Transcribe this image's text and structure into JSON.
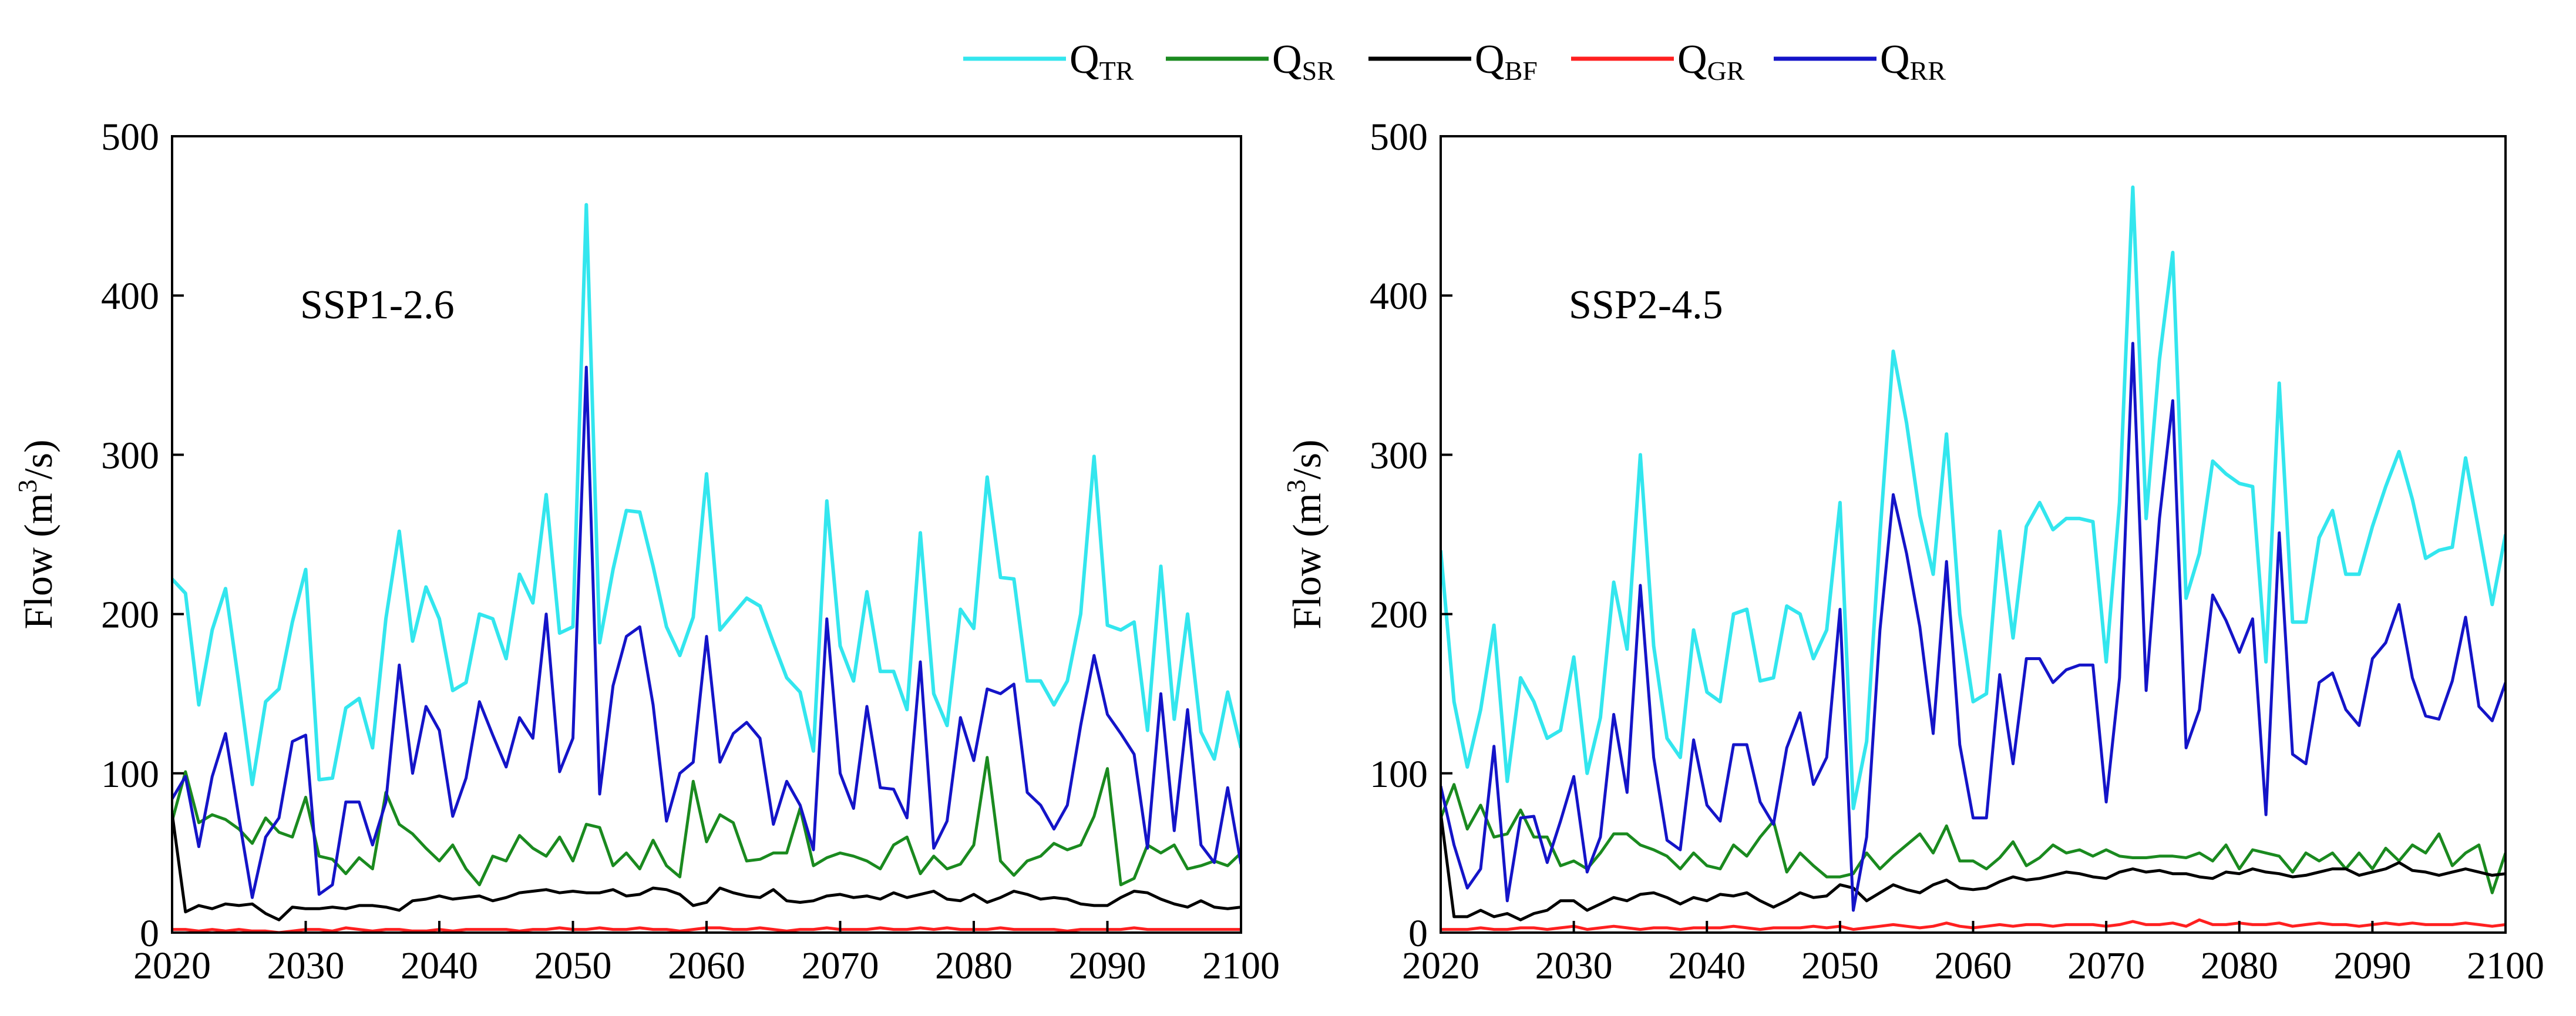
{
  "legend": [
    {
      "main": "Q",
      "sub": "TR",
      "color": "#33E6EE"
    },
    {
      "main": "Q",
      "sub": "SR",
      "color": "#1A8A1F"
    },
    {
      "main": "Q",
      "sub": "BF",
      "color": "#000000"
    },
    {
      "main": "Q",
      "sub": "GR",
      "color": "#FF2020"
    },
    {
      "main": "Q",
      "sub": "RR",
      "color": "#1414C8"
    }
  ],
  "chart_data": [
    {
      "type": "line",
      "annotation": "SSP1-2.6",
      "ylabel_main": "Flow (m",
      "ylabel_sup": "3",
      "ylabel_end": "/s)",
      "xlim": [
        2020,
        2100
      ],
      "ylim": [
        0,
        500
      ],
      "xticks": [
        2020,
        2030,
        2040,
        2050,
        2060,
        2070,
        2080,
        2090,
        2100
      ],
      "yticks": [
        0,
        100,
        200,
        300,
        400,
        500
      ],
      "grid": false,
      "x_start": 2020,
      "series": [
        {
          "name": "QTR",
          "color": "#33E6EE",
          "values": [
            222,
            213,
            143,
            190,
            216,
            156,
            93,
            145,
            153,
            195,
            228,
            96,
            97,
            141,
            147,
            116,
            197,
            252,
            183,
            217,
            197,
            152,
            157,
            200,
            197,
            172,
            225,
            207,
            275,
            188,
            192,
            457,
            182,
            228,
            265,
            264,
            230,
            192,
            174,
            198,
            288,
            190,
            200,
            210,
            205,
            182,
            160,
            151,
            114,
            271,
            180,
            158,
            214,
            164,
            164,
            140,
            251,
            150,
            130,
            203,
            191,
            286,
            223,
            222,
            158,
            158,
            143,
            158,
            200,
            299,
            193,
            190,
            195,
            127,
            230,
            134,
            200,
            126,
            109,
            151,
            116
          ]
        },
        {
          "name": "QSR",
          "color": "#1A8A1F",
          "values": [
            70,
            101,
            69,
            74,
            71,
            65,
            56,
            72,
            63,
            60,
            85,
            48,
            46,
            37,
            47,
            40,
            88,
            68,
            62,
            53,
            45,
            55,
            40,
            30,
            48,
            45,
            61,
            53,
            48,
            60,
            45,
            68,
            66,
            42,
            50,
            40,
            58,
            42,
            35,
            95,
            57,
            74,
            69,
            45,
            46,
            50,
            50,
            78,
            42,
            47,
            50,
            48,
            45,
            40,
            55,
            60,
            37,
            48,
            40,
            43,
            55,
            110,
            45,
            36,
            45,
            48,
            56,
            52,
            55,
            73,
            103,
            30,
            34,
            55,
            50,
            55,
            40,
            42,
            45,
            42,
            50
          ]
        },
        {
          "name": "QBF",
          "color": "#000000",
          "values": [
            75,
            13,
            17,
            15,
            18,
            17,
            18,
            12,
            8,
            16,
            15,
            15,
            16,
            15,
            17,
            17,
            16,
            14,
            20,
            21,
            23,
            21,
            22,
            23,
            20,
            22,
            25,
            26,
            27,
            25,
            26,
            25,
            25,
            27,
            23,
            24,
            28,
            27,
            24,
            17,
            19,
            28,
            25,
            23,
            22,
            27,
            20,
            19,
            20,
            23,
            24,
            22,
            23,
            21,
            25,
            22,
            24,
            26,
            21,
            20,
            24,
            19,
            22,
            26,
            24,
            21,
            22,
            21,
            18,
            17,
            17,
            22,
            26,
            25,
            21,
            18,
            16,
            20,
            16,
            15,
            16
          ]
        },
        {
          "name": "QGR",
          "color": "#FF2020",
          "values": [
            2,
            2,
            1,
            2,
            1,
            2,
            1,
            1,
            0,
            1,
            2,
            2,
            1,
            3,
            2,
            1,
            2,
            2,
            1,
            1,
            2,
            1,
            2,
            2,
            2,
            2,
            1,
            2,
            2,
            3,
            2,
            2,
            3,
            2,
            2,
            3,
            2,
            2,
            1,
            2,
            3,
            3,
            2,
            2,
            3,
            2,
            1,
            2,
            2,
            3,
            2,
            2,
            2,
            3,
            2,
            2,
            3,
            2,
            3,
            2,
            2,
            2,
            3,
            2,
            2,
            2,
            2,
            1,
            2,
            2,
            2,
            2,
            3,
            2,
            2,
            2,
            2,
            2,
            2,
            2,
            2
          ]
        },
        {
          "name": "QRR",
          "color": "#1414C8",
          "values": [
            84,
            98,
            54,
            98,
            125,
            72,
            22,
            60,
            72,
            120,
            124,
            24,
            30,
            82,
            82,
            55,
            82,
            168,
            100,
            142,
            127,
            73,
            97,
            145,
            124,
            104,
            135,
            122,
            200,
            101,
            122,
            355,
            87,
            155,
            186,
            192,
            143,
            70,
            100,
            107,
            186,
            107,
            125,
            132,
            122,
            68,
            95,
            80,
            52,
            197,
            100,
            78,
            142,
            91,
            90,
            72,
            170,
            53,
            70,
            135,
            108,
            153,
            150,
            156,
            88,
            80,
            65,
            80,
            130,
            174,
            137,
            125,
            112,
            53,
            150,
            64,
            140,
            55,
            44,
            91,
            43
          ]
        }
      ]
    },
    {
      "type": "line",
      "annotation": "SSP2-4.5",
      "ylabel_main": "Flow (m",
      "ylabel_sup": "3",
      "ylabel_end": "/s)",
      "xlim": [
        2020,
        2100
      ],
      "ylim": [
        0,
        500
      ],
      "xticks": [
        2020,
        2030,
        2040,
        2050,
        2060,
        2070,
        2080,
        2090,
        2100
      ],
      "yticks": [
        0,
        100,
        200,
        300,
        400,
        500
      ],
      "grid": false,
      "x_start": 2020,
      "series": [
        {
          "name": "QTR",
          "color": "#33E6EE",
          "values": [
            240,
            145,
            104,
            140,
            193,
            95,
            160,
            145,
            122,
            127,
            173,
            100,
            135,
            220,
            178,
            300,
            180,
            122,
            110,
            190,
            151,
            145,
            200,
            203,
            158,
            160,
            205,
            200,
            172,
            190,
            270,
            78,
            120,
            250,
            365,
            320,
            262,
            225,
            313,
            200,
            145,
            150,
            252,
            185,
            255,
            270,
            253,
            260,
            260,
            258,
            170,
            270,
            468,
            260,
            360,
            427,
            210,
            238,
            296,
            288,
            282,
            280,
            170,
            345,
            195,
            195,
            248,
            265,
            225,
            225,
            255,
            280,
            302,
            272,
            235,
            240,
            242,
            298,
            252,
            206,
            250
          ]
        },
        {
          "name": "QSR",
          "color": "#1A8A1F",
          "values": [
            72,
            93,
            65,
            80,
            60,
            62,
            77,
            60,
            60,
            42,
            45,
            40,
            50,
            62,
            62,
            55,
            52,
            48,
            40,
            50,
            42,
            40,
            55,
            48,
            60,
            70,
            38,
            50,
            42,
            35,
            35,
            37,
            50,
            40,
            48,
            55,
            62,
            50,
            67,
            45,
            45,
            40,
            47,
            57,
            42,
            47,
            55,
            50,
            52,
            48,
            52,
            48,
            47,
            47,
            48,
            48,
            47,
            50,
            45,
            55,
            40,
            52,
            50,
            48,
            38,
            50,
            45,
            50,
            40,
            50,
            40,
            53,
            45,
            55,
            50,
            62,
            42,
            50,
            55,
            25,
            50
          ]
        },
        {
          "name": "QBF",
          "color": "#000000",
          "values": [
            75,
            10,
            10,
            14,
            10,
            12,
            8,
            12,
            14,
            20,
            20,
            14,
            18,
            22,
            20,
            24,
            25,
            22,
            18,
            22,
            20,
            24,
            23,
            25,
            20,
            16,
            20,
            25,
            22,
            23,
            30,
            28,
            20,
            25,
            30,
            27,
            25,
            30,
            33,
            28,
            27,
            28,
            32,
            35,
            33,
            34,
            36,
            38,
            37,
            35,
            34,
            38,
            40,
            38,
            39,
            37,
            37,
            35,
            34,
            38,
            37,
            40,
            38,
            37,
            35,
            36,
            38,
            40,
            40,
            36,
            38,
            40,
            44,
            39,
            38,
            36,
            38,
            40,
            38,
            36,
            37
          ]
        },
        {
          "name": "QGR",
          "color": "#FF2020",
          "values": [
            2,
            2,
            2,
            3,
            2,
            2,
            3,
            3,
            2,
            3,
            4,
            2,
            3,
            4,
            3,
            2,
            3,
            3,
            2,
            3,
            3,
            3,
            4,
            3,
            2,
            3,
            3,
            3,
            4,
            3,
            4,
            2,
            3,
            4,
            5,
            4,
            3,
            4,
            6,
            4,
            3,
            4,
            5,
            4,
            5,
            5,
            4,
            5,
            5,
            5,
            4,
            5,
            7,
            5,
            5,
            6,
            4,
            8,
            5,
            5,
            6,
            5,
            5,
            6,
            4,
            5,
            6,
            5,
            5,
            4,
            5,
            6,
            5,
            6,
            5,
            5,
            5,
            6,
            5,
            4,
            5
          ]
        },
        {
          "name": "QRR",
          "color": "#1414C8",
          "values": [
            92,
            55,
            28,
            40,
            117,
            20,
            72,
            73,
            44,
            70,
            98,
            38,
            60,
            137,
            88,
            218,
            110,
            58,
            52,
            121,
            80,
            70,
            118,
            118,
            82,
            68,
            116,
            138,
            93,
            110,
            203,
            14,
            60,
            190,
            275,
            238,
            192,
            125,
            233,
            118,
            72,
            72,
            162,
            106,
            172,
            172,
            157,
            165,
            168,
            168,
            82,
            160,
            370,
            152,
            260,
            334,
            116,
            140,
            212,
            196,
            176,
            197,
            74,
            251,
            112,
            106,
            157,
            163,
            140,
            130,
            172,
            182,
            206,
            160,
            136,
            134,
            158,
            198,
            142,
            133,
            157
          ]
        }
      ]
    }
  ]
}
